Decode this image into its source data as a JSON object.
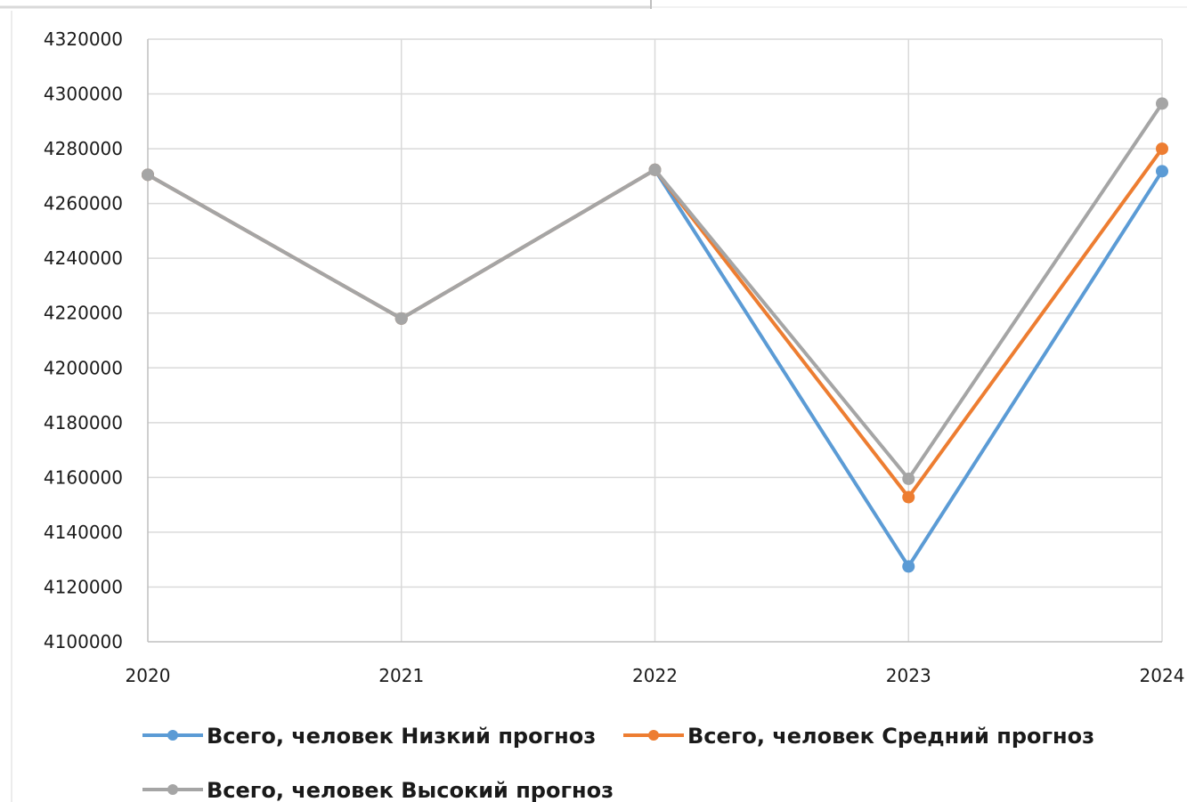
{
  "chart_data": {
    "type": "line",
    "title": "",
    "xlabel": "",
    "ylabel": "",
    "categories": [
      "2020",
      "2021",
      "2022",
      "2023",
      "2024"
    ],
    "ylim": [
      4100000,
      4320000
    ],
    "ytick_step": 20000,
    "y_ticks": [
      "4100000",
      "4120000",
      "4140000",
      "4160000",
      "4180000",
      "4200000",
      "4220000",
      "4240000",
      "4260000",
      "4280000",
      "4300000",
      "4320000"
    ],
    "grid": true,
    "legend_position": "bottom",
    "series": [
      {
        "name": "Всего, человек Низкий прогноз",
        "color": "#5b9bd5",
        "values": [
          4270500,
          4218000,
          4272300,
          4127500,
          4271800
        ]
      },
      {
        "name": "Всего, человек Средний прогноз",
        "color": "#ed7d31",
        "values": [
          4270500,
          4218000,
          4272300,
          4152800,
          4280000
        ]
      },
      {
        "name": "Всего, человек Высокий прогноз",
        "color": "#a5a5a5",
        "values": [
          4270500,
          4218000,
          4272300,
          4159500,
          4296500
        ]
      }
    ]
  }
}
